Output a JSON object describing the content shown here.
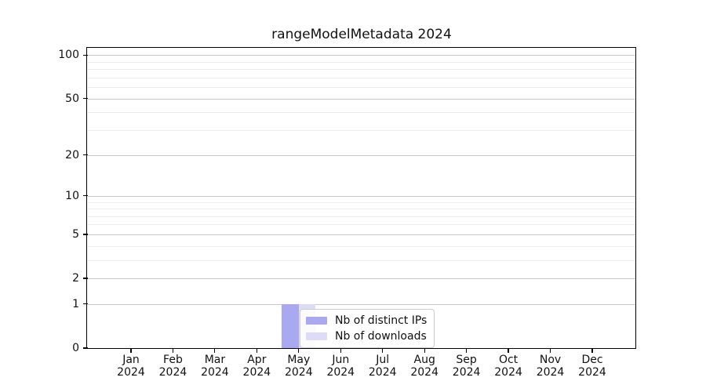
{
  "title": "rangeModelMetadata 2024",
  "chart_data": {
    "type": "bar",
    "title": "rangeModelMetadata 2024",
    "xlabel": "",
    "ylabel": "",
    "x": {
      "months": [
        "Jan",
        "Feb",
        "Mar",
        "Apr",
        "May",
        "Jun",
        "Jul",
        "Aug",
        "Sep",
        "Oct",
        "Nov",
        "Dec"
      ],
      "year": "2024"
    },
    "series": [
      {
        "name": "Nb of distinct IPs",
        "color": "#a9a9f1",
        "values": [
          0,
          0,
          0,
          0,
          1,
          0,
          0,
          0,
          0,
          0,
          0,
          0
        ]
      },
      {
        "name": "Nb of downloads",
        "color": "#dcdcf7",
        "values": [
          0,
          0,
          0,
          0,
          1,
          0,
          0,
          0,
          0,
          0,
          0,
          0
        ]
      }
    ],
    "y_axis": {
      "scale": "log1p",
      "ticks": [
        0,
        1,
        2,
        5,
        10,
        20,
        50,
        100
      ],
      "minor_ticks": [
        3,
        4,
        6,
        7,
        8,
        9,
        30,
        40,
        60,
        70,
        80,
        90
      ],
      "lim": [
        0,
        111
      ]
    },
    "grid": {
      "which": "both",
      "major_color": "#c9c9c9",
      "minor_color": "#ececec"
    },
    "legend_position": "lower center, inside plot",
    "colors": {
      "background": "#ffffff",
      "spine": "#000000",
      "text": "#111111"
    }
  }
}
